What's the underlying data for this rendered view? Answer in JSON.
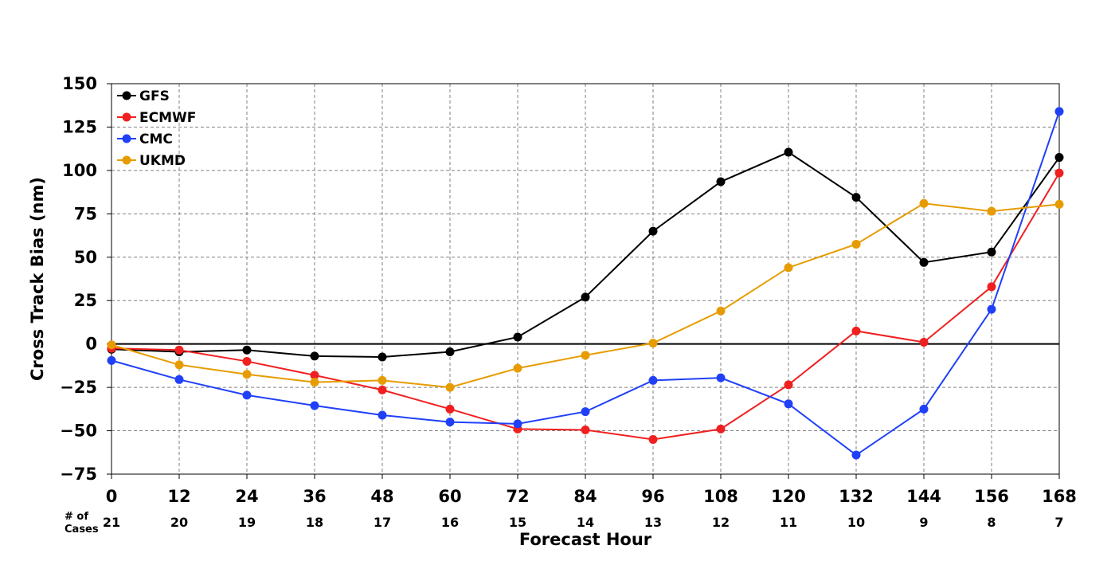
{
  "chart_data": {
    "type": "line",
    "title": "",
    "xlabel": "Forecast Hour",
    "ylabel": "Cross Track Bias (nm)",
    "x": [
      0,
      12,
      24,
      36,
      48,
      60,
      72,
      84,
      96,
      108,
      120,
      132,
      144,
      156,
      168
    ],
    "xlim": [
      0,
      168
    ],
    "ylim": [
      -75,
      150
    ],
    "yticks": [
      -75,
      -50,
      -25,
      0,
      25,
      50,
      75,
      100,
      125,
      150
    ],
    "grid": true,
    "zero_line": true,
    "legend_position": "top-left",
    "cases_label": "# of\nCases",
    "cases": [
      21,
      20,
      19,
      18,
      17,
      16,
      15,
      14,
      13,
      12,
      11,
      10,
      9,
      8,
      7
    ],
    "series": [
      {
        "name": "GFS",
        "color": "#000000",
        "values": [
          -3,
          -4.5,
          -3.5,
          -7,
          -7.5,
          -4.5,
          4,
          27,
          65,
          93.5,
          110.5,
          84.5,
          47,
          53,
          107.5
        ]
      },
      {
        "name": "ECMWF",
        "color": "#f02020",
        "values": [
          -2.5,
          -3.5,
          -10,
          -18,
          -26.5,
          -37.5,
          -49,
          -49.5,
          -55,
          -49,
          -23.5,
          7.5,
          1,
          33,
          98.5
        ]
      },
      {
        "name": "CMC",
        "color": "#2040f8",
        "values": [
          -9.5,
          -20.5,
          -29.5,
          -35.5,
          -41,
          -45,
          -46,
          -39,
          -21,
          -19.5,
          -34.5,
          -64,
          -37.5,
          20,
          134
        ]
      },
      {
        "name": "UKMD",
        "color": "#e69c00",
        "values": [
          -0.5,
          -12,
          -17.5,
          -22,
          -21,
          -25,
          -14,
          -6.5,
          0.5,
          19,
          44,
          57.5,
          81,
          76.5,
          80.5
        ]
      }
    ]
  }
}
